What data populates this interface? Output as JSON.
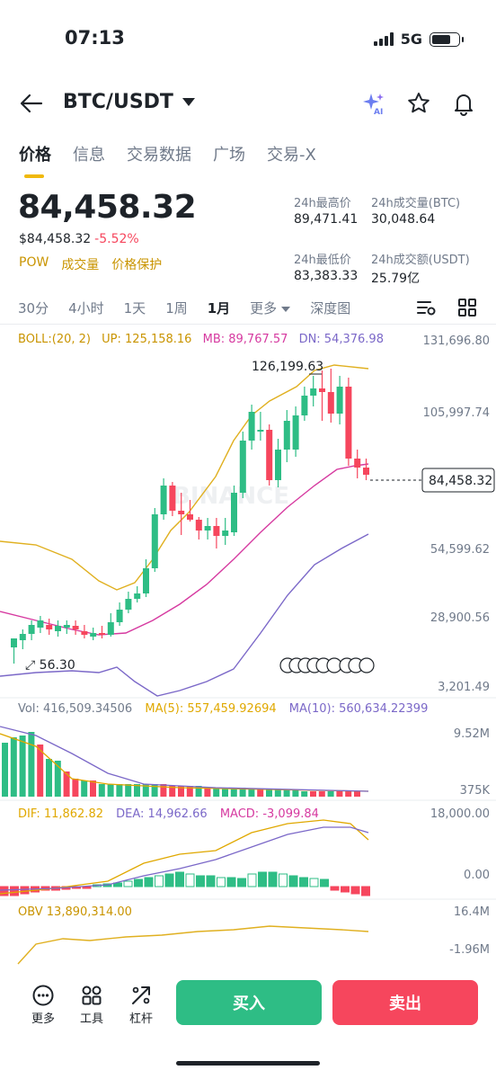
{
  "status": {
    "time": "07:13",
    "network": "5G"
  },
  "header": {
    "pair": "BTC/USDT"
  },
  "tabs": [
    "价格",
    "信息",
    "交易数据",
    "广场",
    "交易-X"
  ],
  "price": {
    "last": "84,458.32",
    "fiat": "$84,458.32",
    "change": "-5.52%",
    "badges": [
      "POW",
      "成交量",
      "价格保护"
    ]
  },
  "stats": {
    "high_label": "24h最高价",
    "high": "89,471.41",
    "vol_btc_label": "24h成交量(BTC)",
    "vol_btc": "30,048.64",
    "low_label": "24h最低价",
    "low": "83,383.33",
    "vol_usdt_label": "24h成交额(USDT)",
    "vol_usdt": "25.79亿"
  },
  "intervals": [
    "30分",
    "4小时",
    "1天",
    "1周",
    "1月",
    "更多",
    "深度图"
  ],
  "selected_interval": "1月",
  "indicators": {
    "boll": "BOLL:(20, 2)",
    "up": "UP: 125,158.16",
    "mb": "MB: 89,767.57",
    "dn": "DN: 54,376.98",
    "vol": "Vol: 416,509.34506",
    "ma5": "MA(5): 557,459.92694",
    "ma10": "MA(10): 560,634.22399",
    "dif": "DIF: 11,862.82",
    "dea": "DEA: 14,962.66",
    "macd": "MACD: -3,099.84",
    "obv": "OBV 13,890,314.00"
  },
  "chart_data": {
    "type": "candlestick",
    "y_axis_labels": [
      "131,696.80",
      "105,997.74",
      "54,599.62",
      "28,900.56",
      "3,201.49"
    ],
    "current_price_label": "84,458.32",
    "high_marker": "126,199.63",
    "low_marker": "56.30",
    "vol_axis": [
      "9.52M",
      "375K"
    ],
    "macd_axis": [
      "18,000.00",
      "0.00"
    ],
    "obv_axis": [
      "16.4M",
      "-1.96M"
    ],
    "watermark": "BINANCE",
    "colors": {
      "up": "#2ebd85",
      "down": "#f6465d",
      "boll_up": "#e0b020",
      "boll_mb": "#d63aa0",
      "boll_dn": "#7b68c8"
    }
  },
  "bottom": {
    "more": "更多",
    "tools": "工具",
    "leverage": "杠杆",
    "buy": "买入",
    "sell": "卖出"
  }
}
